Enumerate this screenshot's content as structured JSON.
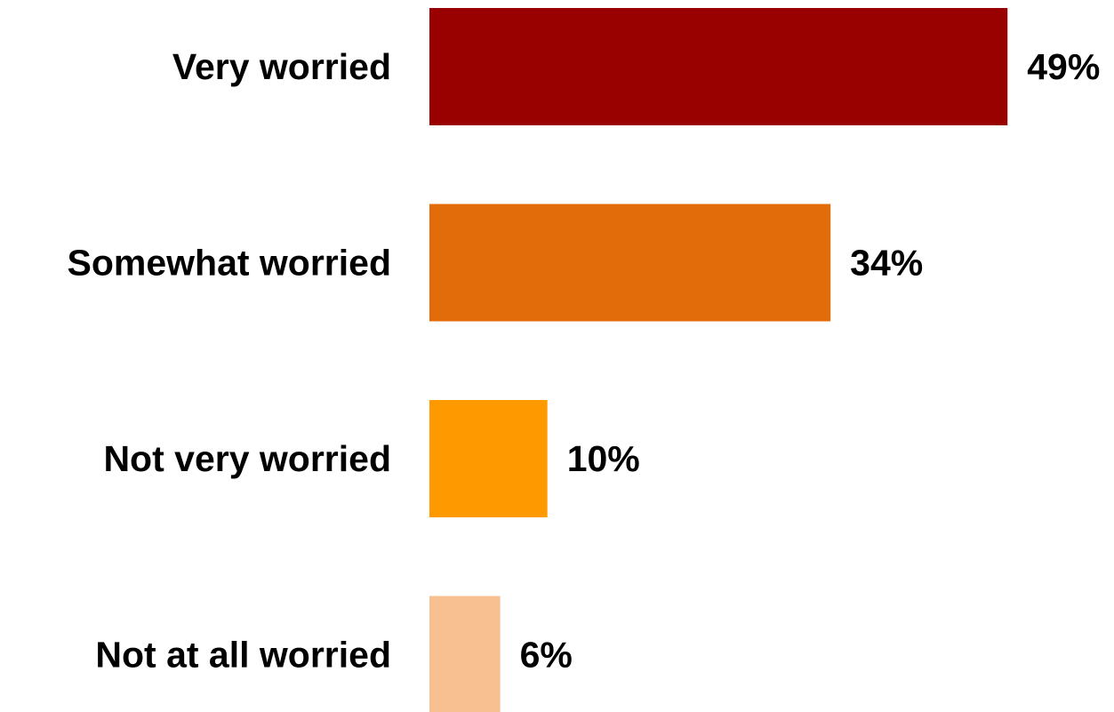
{
  "chart_data": {
    "type": "bar",
    "orientation": "horizontal",
    "categories": [
      "Very worried",
      "Somewhat worried",
      "Not very worried",
      "Not at all worried"
    ],
    "values": [
      49,
      34,
      10,
      6
    ],
    "value_labels": [
      "49%",
      "34%",
      "10%",
      "6%"
    ],
    "colors": [
      "#990000",
      "#E36C0A",
      "#FF9900",
      "#F8C090"
    ],
    "xlim": [
      0,
      50
    ],
    "grid": false,
    "legend": "none"
  }
}
